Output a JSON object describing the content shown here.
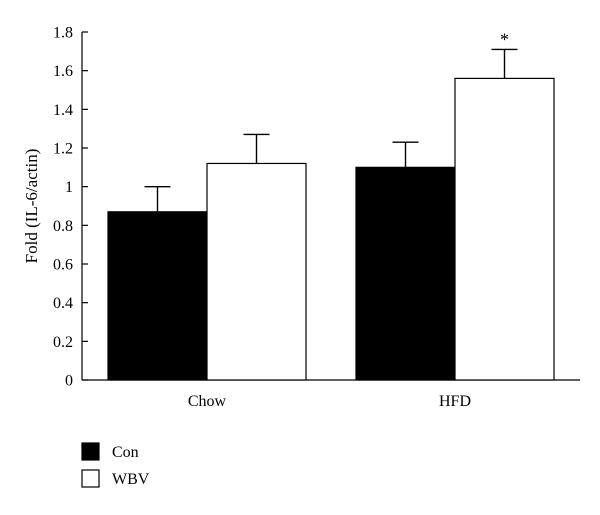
{
  "chart_data": {
    "type": "bar",
    "title": "",
    "xlabel": "",
    "ylabel": "Fold (IL-6/actin)",
    "ylim": [
      0,
      1.8
    ],
    "yticks": [
      0,
      0.2,
      0.4,
      0.6,
      0.8,
      1,
      1.2,
      1.4,
      1.6,
      1.8
    ],
    "ytick_labels": [
      "0",
      "0.2",
      "0.4",
      "0.6",
      "0.8",
      "1",
      "1.2",
      "1.4",
      "1.6",
      "1.8"
    ],
    "categories": [
      "Chow",
      "HFD"
    ],
    "series": [
      {
        "name": "Con",
        "color": "#000000",
        "values": [
          0.87,
          1.1
        ],
        "errors": [
          0.13,
          0.13
        ]
      },
      {
        "name": "WBV",
        "color": "#ffffff",
        "values": [
          1.12,
          1.56
        ],
        "errors": [
          0.15,
          0.15
        ]
      }
    ],
    "annotations": [
      {
        "category": "HFD",
        "series": "WBV",
        "text": "*"
      }
    ],
    "grid": false,
    "legend": "bottom-left"
  }
}
